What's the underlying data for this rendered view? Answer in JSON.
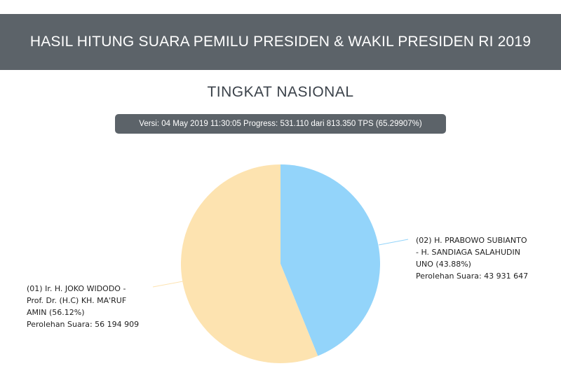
{
  "header": {
    "title": "HASIL HITUNG SUARA PEMILU PRESIDEN & WAKIL PRESIDEN RI 2019"
  },
  "section": {
    "title": "TINGKAT NASIONAL"
  },
  "version_badge": "Versi: 04 May 2019 11:30:05 Progress: 531.110 dari 813.350 TPS (65.29907%)",
  "colors": {
    "header_bg": "#5c6369",
    "slice_01": "#fde3b0",
    "slice_02": "#93d4fa"
  },
  "chart_data": {
    "type": "pie",
    "title": "",
    "slices": [
      {
        "label_lines": [
          "(01) Ir. H. JOKO WIDODO -",
          "Prof. Dr. (H.C) KH. MA'RUF",
          "AMIN (56.12%)",
          "Perolehan Suara: 56 194 909"
        ],
        "percent": 56.12,
        "votes": 56194909,
        "color": "#fde3b0"
      },
      {
        "label_lines": [
          "(02) H. PRABOWO SUBIANTO",
          "- H. SANDIAGA SALAHUDIN",
          "UNO (43.88%)",
          "Perolehan Suara: 43 931 647"
        ],
        "percent": 43.88,
        "votes": 43931647,
        "color": "#93d4fa"
      }
    ]
  }
}
